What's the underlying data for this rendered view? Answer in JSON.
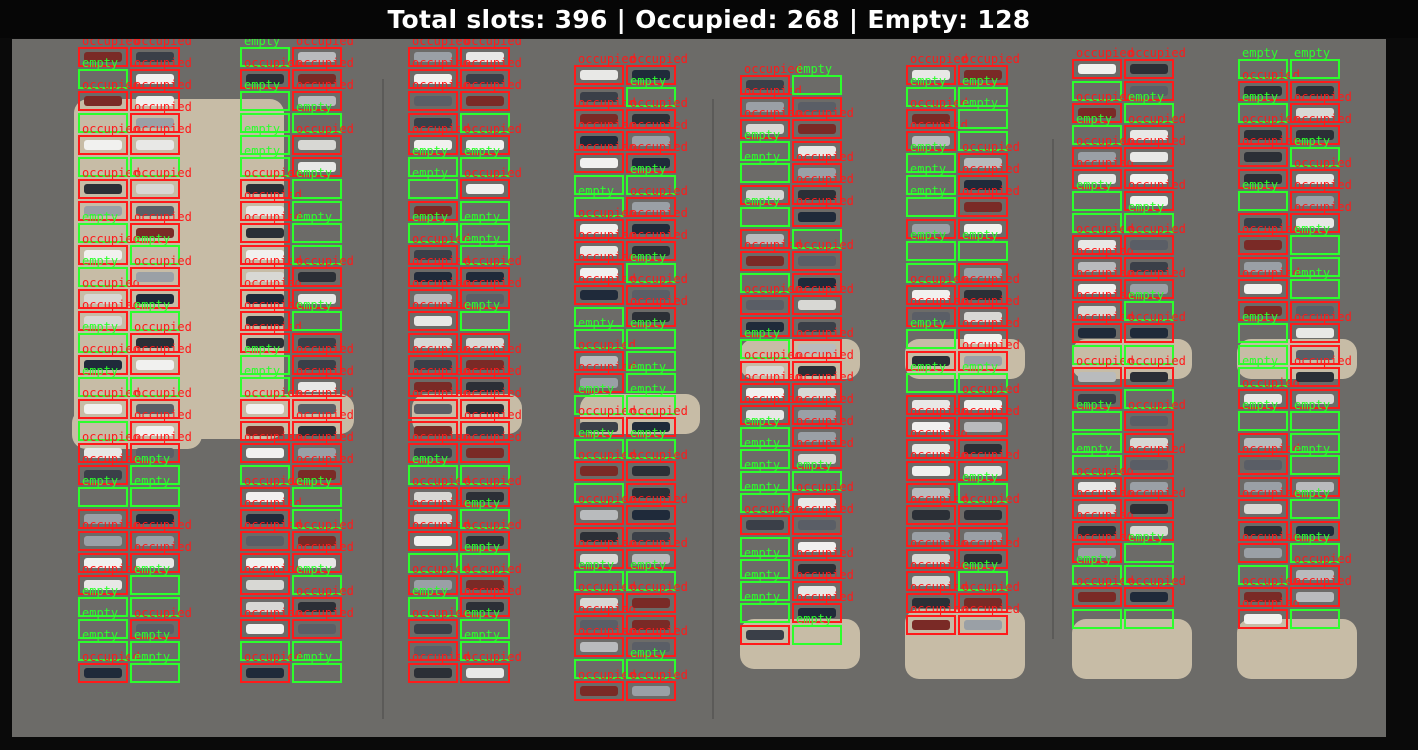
{
  "header": {
    "summary_text": "Total slots: 396 | Occupied: 268 | Empty: 128"
  },
  "labels": {
    "occupied": "occupied",
    "empty": "empty"
  },
  "colors": {
    "occupied": "#ff1a1a",
    "empty": "#2cff2c",
    "banner_background": "#060606",
    "pavement": "#6c6b68"
  }
}
